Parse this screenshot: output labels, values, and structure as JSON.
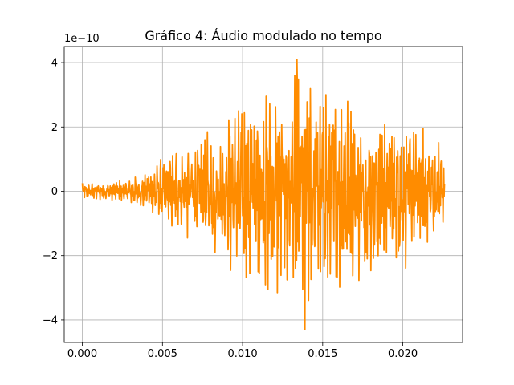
{
  "chart_data": {
    "type": "line",
    "title": "Gráfico 4: Áudio modulado no tempo",
    "xlabel": "",
    "ylabel": "",
    "y_offset_label": "1e−10",
    "xlim": [
      -0.00113,
      0.02373
    ],
    "ylim": [
      -4.7,
      4.5
    ],
    "x_ticks": [
      0.0,
      0.005,
      0.01,
      0.015,
      0.02
    ],
    "x_tick_labels": [
      "0.000",
      "0.005",
      "0.010",
      "0.015",
      "0.020"
    ],
    "y_ticks": [
      -4,
      -2,
      0,
      2,
      4
    ],
    "y_tick_labels": [
      "−4",
      "−2",
      "0",
      "2",
      "4"
    ],
    "grid": true,
    "line_color": "#ff8c00",
    "series": [
      {
        "name": "",
        "x_range": [
          0.0,
          0.0226
        ],
        "sample_count": 1000,
        "peak_extremes": [
          {
            "x": 0.0134,
            "y": 4.1
          },
          {
            "x": 0.0139,
            "y": -4.3
          }
        ],
        "envelope": [
          {
            "x": 0.0,
            "y": 0.25
          },
          {
            "x": 0.002,
            "y": 0.35
          },
          {
            "x": 0.004,
            "y": 0.6
          },
          {
            "x": 0.005,
            "y": 1.1
          },
          {
            "x": 0.006,
            "y": 1.5
          },
          {
            "x": 0.008,
            "y": 2.0
          },
          {
            "x": 0.01,
            "y": 3.3
          },
          {
            "x": 0.012,
            "y": 3.6
          },
          {
            "x": 0.0137,
            "y": 4.2
          },
          {
            "x": 0.016,
            "y": 3.5
          },
          {
            "x": 0.018,
            "y": 3.1
          },
          {
            "x": 0.02,
            "y": 2.5
          },
          {
            "x": 0.022,
            "y": 2.1
          },
          {
            "x": 0.0226,
            "y": 1.6
          }
        ]
      }
    ]
  }
}
